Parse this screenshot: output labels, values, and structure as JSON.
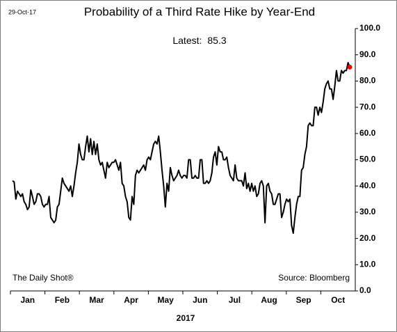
{
  "chart_data": {
    "type": "line",
    "date": "29-Oct-17",
    "title": "Probability of a Third Rate Hike by Year-End",
    "latest_label": "Latest:",
    "latest": 85.3,
    "latest_color": "#ff0000",
    "left_note": "The Daily Shot®",
    "source": "Source: Bloomberg",
    "xlabel": "2017",
    "month_labels": [
      "Jan",
      "Feb",
      "Mar",
      "Apr",
      "May",
      "Jun",
      "Jul",
      "Aug",
      "Sep",
      "Oct"
    ],
    "series": [
      {
        "color": "#000000",
        "values": [
          42,
          41.5,
          35,
          38,
          37,
          36,
          37,
          34,
          33,
          31,
          32,
          38.5,
          36,
          33,
          34,
          37,
          37,
          36,
          33,
          32,
          33,
          33,
          36,
          28,
          27,
          26,
          27,
          32,
          33,
          38,
          43,
          41,
          40,
          39,
          38,
          40,
          36,
          40,
          45,
          49,
          56,
          52,
          50,
          50,
          55,
          59,
          53,
          58,
          52,
          57,
          52,
          56,
          50,
          48,
          49,
          46,
          43,
          49,
          47,
          48,
          49,
          49,
          50,
          48,
          46,
          49,
          41,
          40,
          36,
          34,
          28,
          27,
          36,
          33,
          44,
          46,
          45,
          46,
          47,
          48,
          46,
          50,
          51,
          50,
          53,
          56,
          57,
          56,
          59,
          53,
          46,
          40,
          32,
          41,
          38,
          47,
          44,
          42,
          43,
          44,
          46,
          44,
          43,
          44,
          44,
          43,
          50,
          50,
          43,
          43,
          44,
          43,
          43,
          50,
          50,
          41,
          41,
          42,
          41,
          42,
          45,
          51,
          53,
          48,
          55,
          53,
          53,
          50,
          50,
          51,
          47,
          44,
          43,
          42,
          48,
          43,
          42,
          42,
          42,
          40,
          45,
          39,
          41,
          38,
          41,
          38,
          40,
          36,
          37,
          41,
          42,
          40,
          26,
          40,
          41,
          38,
          37,
          33,
          33,
          35,
          37,
          37,
          28,
          30,
          33,
          35,
          34,
          35,
          25,
          22,
          28,
          33,
          36,
          36,
          46,
          47,
          52,
          55,
          63,
          64,
          63,
          63,
          70,
          70,
          67,
          70,
          68,
          72,
          77,
          79,
          80,
          77,
          77,
          73,
          78,
          84,
          80,
          80,
          84,
          83,
          84,
          84,
          87,
          85.3
        ]
      }
    ],
    "ylim": [
      0,
      100
    ],
    "yticks": [
      {
        "value": 0,
        "label": "0.0"
      },
      {
        "value": 10,
        "label": "10.0"
      },
      {
        "value": 20,
        "label": "20.0"
      },
      {
        "value": 30,
        "label": "30.0"
      },
      {
        "value": 40,
        "label": "40.0"
      },
      {
        "value": 50,
        "label": "50.0"
      },
      {
        "value": 60,
        "label": "60.0"
      },
      {
        "value": 70,
        "label": "70.0"
      },
      {
        "value": 80,
        "label": "80.0"
      },
      {
        "value": 90,
        "label": "90.0"
      },
      {
        "value": 100,
        "label": "100.0"
      }
    ],
    "grid": false
  }
}
